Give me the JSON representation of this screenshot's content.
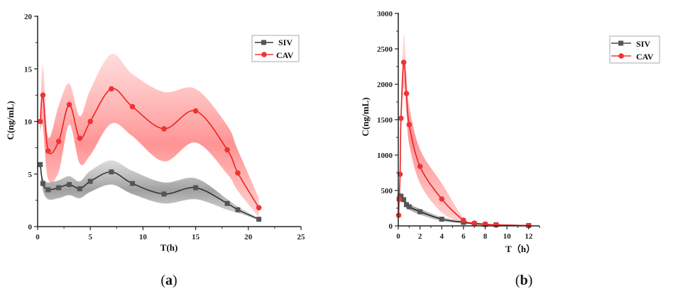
{
  "chart_data": [
    {
      "id": "a",
      "type": "line",
      "panel_label": "(a)",
      "panel_label_parts": {
        "open": "(",
        "letter": "a",
        "close": ")"
      },
      "xlabel": "T(h)",
      "ylabel": "C(ng/mL)",
      "xlim": [
        0,
        25
      ],
      "ylim": [
        0,
        20
      ],
      "xticks": [
        0,
        5,
        10,
        15,
        20,
        25
      ],
      "yticks": [
        0,
        5,
        10,
        15,
        20
      ],
      "legend_position": "top-right",
      "series": [
        {
          "name": "SIV",
          "color": "#333333",
          "band_color": "#888888",
          "marker": "square",
          "x": [
            0.25,
            0.5,
            1,
            2,
            3,
            4,
            5,
            7,
            9,
            12,
            15,
            18,
            19,
            21
          ],
          "y": [
            5.9,
            4.1,
            3.5,
            3.7,
            4.0,
            3.6,
            4.3,
            5.2,
            4.1,
            3.1,
            3.7,
            2.2,
            1.6,
            0.7
          ],
          "band_upper": [
            6.1,
            4.6,
            4.2,
            4.4,
            4.8,
            4.3,
            5.3,
            6.3,
            5.3,
            4.2,
            4.6,
            2.6,
            1.9,
            0.8
          ],
          "band_lower": [
            5.7,
            3.5,
            2.6,
            2.7,
            3.0,
            2.7,
            3.3,
            4.0,
            3.1,
            2.2,
            2.6,
            1.6,
            1.3,
            0.6
          ]
        },
        {
          "name": "CAV",
          "color": "#ee2222",
          "band_color": "#ff6666",
          "marker": "circle",
          "x": [
            0.25,
            0.5,
            1,
            2,
            3,
            4,
            5,
            7,
            9,
            12,
            15,
            18,
            19,
            21
          ],
          "y": [
            10.0,
            12.5,
            7.2,
            8.1,
            11.6,
            8.4,
            10.0,
            13.1,
            11.4,
            9.3,
            11.0,
            7.3,
            5.1,
            1.8
          ],
          "band_upper": [
            10.5,
            15.3,
            8.5,
            11.5,
            13.6,
            10.5,
            13.0,
            16.4,
            14.5,
            12.8,
            13.1,
            9.6,
            7.3,
            2.7
          ],
          "band_lower": [
            9.0,
            9.5,
            4.5,
            5.2,
            9.7,
            6.0,
            6.8,
            9.8,
            8.6,
            6.2,
            8.0,
            5.0,
            3.4,
            0.9
          ]
        }
      ]
    },
    {
      "id": "b",
      "type": "line",
      "panel_label": "(b)",
      "panel_label_parts": {
        "open": "(",
        "letter": "b",
        "close": ")"
      },
      "xlabel": "T（h）",
      "ylabel": "C(ng/mL)",
      "xlim": [
        0,
        13
      ],
      "ylim": [
        0,
        3000
      ],
      "xticks": [
        0,
        2,
        4,
        6,
        8,
        10,
        12
      ],
      "yticks": [
        0,
        500,
        1000,
        1500,
        2000,
        2500,
        3000
      ],
      "legend_position": "top-right",
      "series": [
        {
          "name": "SIV",
          "color": "#222222",
          "band_color": "#888888",
          "marker": "square",
          "x": [
            0.083,
            0.167,
            0.25,
            0.5,
            0.75,
            1,
            2,
            4,
            6,
            7,
            8,
            9,
            12
          ],
          "y": [
            380,
            420,
            420,
            370,
            300,
            270,
            200,
            95,
            50,
            30,
            20,
            15,
            5
          ],
          "band_upper": [
            420,
            470,
            470,
            410,
            340,
            310,
            240,
            125,
            70,
            45,
            30,
            22,
            8
          ],
          "band_lower": [
            340,
            370,
            370,
            330,
            260,
            230,
            160,
            65,
            30,
            18,
            12,
            8,
            2
          ]
        },
        {
          "name": "CAV",
          "color": "#ee2222",
          "band_color": "#ff6666",
          "marker": "circle",
          "x": [
            0.033,
            0.083,
            0.167,
            0.25,
            0.5,
            0.75,
            1,
            2,
            4,
            6,
            7,
            8,
            9,
            12
          ],
          "y": [
            150,
            380,
            730,
            1520,
            2310,
            1870,
            1430,
            840,
            380,
            80,
            40,
            25,
            15,
            5
          ],
          "band_upper": [
            180,
            430,
            800,
            1650,
            2700,
            2150,
            1700,
            1080,
            600,
            110,
            55,
            32,
            20,
            7
          ],
          "band_lower": [
            120,
            330,
            660,
            1390,
            1950,
            1600,
            1160,
            600,
            190,
            50,
            25,
            18,
            10,
            3
          ]
        }
      ]
    }
  ]
}
